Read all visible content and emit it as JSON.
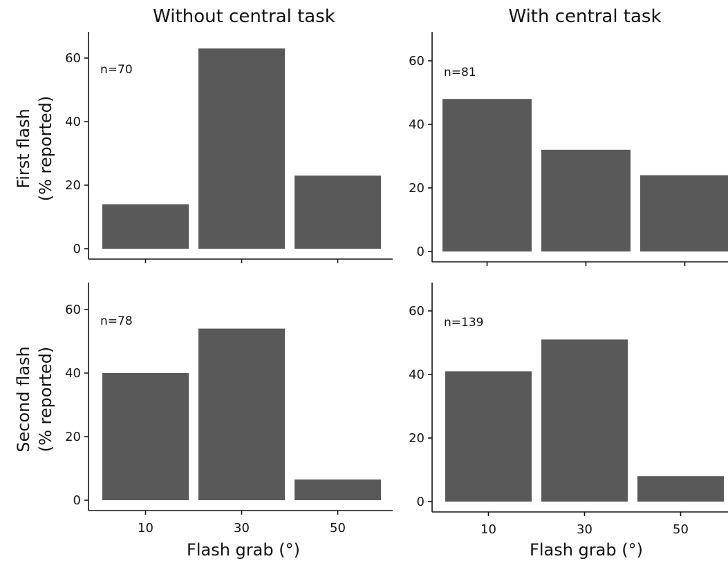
{
  "col_titles": [
    "Without central task",
    "With central task"
  ],
  "row_titles": [
    [
      "First flash",
      "(% reported)"
    ],
    [
      "Second flash",
      "(% reported)"
    ]
  ],
  "xlabel": "Flash grab (°)",
  "colors": {
    "bar": "#595959",
    "axis": "#111111"
  },
  "chart_data": [
    {
      "type": "bar",
      "panel": "top-left",
      "annotation": "n=70",
      "categories": [
        "10",
        "30",
        "50"
      ],
      "values": [
        14,
        63,
        23
      ],
      "ylim": [
        0,
        68
      ],
      "yticks": [
        0,
        20,
        40,
        60
      ],
      "grid": false
    },
    {
      "type": "bar",
      "panel": "top-right",
      "annotation": "n=81",
      "categories": [
        "10",
        "30",
        "50"
      ],
      "values": [
        48,
        32,
        24
      ],
      "ylim": [
        0,
        68
      ],
      "yticks": [
        0,
        20,
        40,
        60
      ],
      "grid": false
    },
    {
      "type": "bar",
      "panel": "bottom-left",
      "annotation": "n=78",
      "categories": [
        "10",
        "30",
        "50"
      ],
      "values": [
        40,
        54,
        6.5
      ],
      "ylim": [
        0,
        68
      ],
      "yticks": [
        0,
        20,
        40,
        60
      ],
      "grid": false
    },
    {
      "type": "bar",
      "panel": "bottom-right",
      "annotation": "n=139",
      "categories": [
        "10",
        "30",
        "50"
      ],
      "values": [
        41,
        51,
        8
      ],
      "ylim": [
        0,
        68
      ],
      "yticks": [
        0,
        20,
        40,
        60
      ],
      "grid": false
    }
  ]
}
